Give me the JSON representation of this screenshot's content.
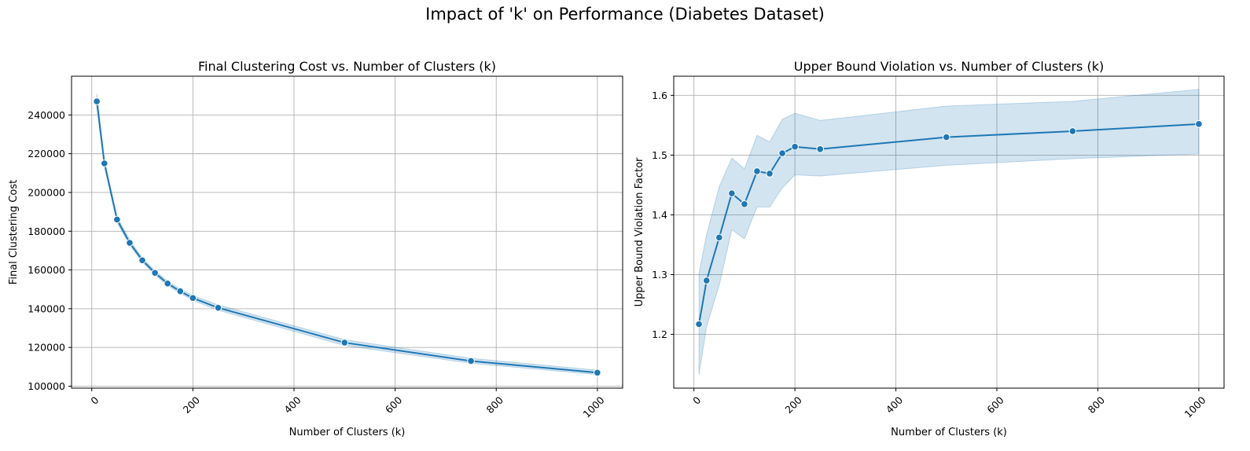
{
  "suptitle": "Impact of 'k' on Performance (Diabetes Dataset)",
  "colors": {
    "line": "#1f77b4",
    "band": "#1f77b4",
    "grid": "#b0b0b0",
    "axes": "#000000"
  },
  "chart_data": [
    {
      "type": "line",
      "title": "Final Clustering Cost vs. Number of Clusters (k)",
      "xlabel": "Number of Clusters (k)",
      "ylabel": "Final Clustering Cost",
      "xlim": [
        -40,
        1050
      ],
      "ylim": [
        99000,
        260000
      ],
      "xticks": [
        0,
        200,
        400,
        600,
        800,
        1000
      ],
      "yticks": [
        100000,
        120000,
        140000,
        160000,
        180000,
        200000,
        220000,
        240000
      ],
      "grid": true,
      "markers": true,
      "confidence_band": true,
      "x": [
        10,
        25,
        50,
        75,
        100,
        125,
        150,
        175,
        200,
        250,
        500,
        750,
        1000
      ],
      "y": [
        247000,
        215000,
        186000,
        174000,
        165000,
        158500,
        153000,
        149000,
        145500,
        140500,
        122500,
        113000,
        107000
      ],
      "y_lower": [
        244000,
        213500,
        184500,
        172800,
        164000,
        157500,
        152000,
        148000,
        144300,
        139200,
        121000,
        111800,
        106000
      ],
      "y_upper": [
        251000,
        217000,
        187500,
        175500,
        166200,
        159700,
        154200,
        150200,
        146800,
        142000,
        124000,
        114400,
        108300
      ]
    },
    {
      "type": "line",
      "title": "Upper Bound Violation vs. Number of Clusters (k)",
      "xlabel": "Number of Clusters (k)",
      "ylabel": "Upper Bound Violation Factor",
      "xlim": [
        -40,
        1050
      ],
      "ylim": [
        1.11,
        1.632
      ],
      "xticks": [
        0,
        200,
        400,
        600,
        800,
        1000
      ],
      "yticks": [
        1.2,
        1.3,
        1.4,
        1.5,
        1.6
      ],
      "grid": true,
      "markers": true,
      "confidence_band": true,
      "x": [
        10,
        25,
        50,
        75,
        100,
        125,
        150,
        175,
        200,
        250,
        500,
        750,
        1000
      ],
      "y": [
        1.217,
        1.29,
        1.362,
        1.436,
        1.418,
        1.473,
        1.469,
        1.503,
        1.514,
        1.51,
        1.53,
        1.54,
        1.552
      ],
      "y_lower": [
        1.132,
        1.213,
        1.282,
        1.375,
        1.36,
        1.413,
        1.413,
        1.445,
        1.467,
        1.465,
        1.483,
        1.494,
        1.502
      ],
      "y_upper": [
        1.302,
        1.367,
        1.447,
        1.495,
        1.477,
        1.533,
        1.522,
        1.56,
        1.57,
        1.558,
        1.582,
        1.59,
        1.61
      ]
    }
  ]
}
